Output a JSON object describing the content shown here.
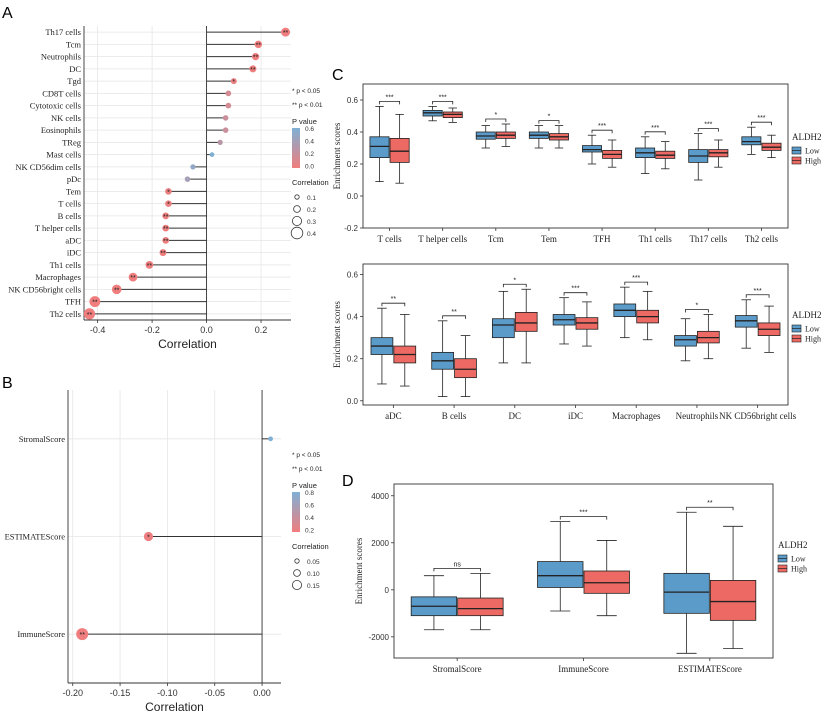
{
  "chart_data": [
    {
      "panel": "A",
      "type": "lollipop",
      "xlabel": "Correlation",
      "xlim": [
        -0.45,
        0.31
      ],
      "xticks": [
        -0.4,
        -0.2,
        0.0,
        0.2
      ],
      "tick_labels": [
        "-0.4",
        "-0.2",
        "0.0",
        "0.2"
      ],
      "categories": [
        "Th17 cells",
        "Tcm",
        "Neutrophils",
        "DC",
        "Tgd",
        "CD8T cells",
        "Cytotoxic cells",
        "NK cells",
        "Eosinophils",
        "TReg",
        "Mast cells",
        "NK CD56dim cells",
        "pDc",
        "Tem",
        "T cells",
        "B cells",
        "T helper cells",
        "aDC",
        "iDC",
        "Th1 cells",
        "Macrophages",
        "NK CD56bright cells",
        "TFH",
        "Th2 cells"
      ],
      "values": [
        0.29,
        0.19,
        0.18,
        0.17,
        0.1,
        0.08,
        0.08,
        0.07,
        0.07,
        0.05,
        0.02,
        -0.05,
        -0.07,
        -0.14,
        -0.14,
        -0.15,
        -0.15,
        -0.15,
        -0.16,
        -0.21,
        -0.27,
        -0.33,
        -0.41,
        -0.43
      ],
      "pvalues": [
        0.0,
        0.0,
        0.0,
        0.0,
        0.02,
        0.15,
        0.15,
        0.2,
        0.2,
        0.3,
        0.6,
        0.5,
        0.4,
        0.02,
        0.02,
        0.01,
        0.01,
        0.01,
        0.005,
        0.002,
        0.0,
        0.0,
        0.0,
        0.0
      ],
      "sig": [
        "**",
        "**",
        "**",
        "**",
        "*",
        "",
        "",
        "",
        "",
        "",
        "",
        "",
        "",
        "*",
        "*",
        "**",
        "**",
        "**",
        "**",
        "**",
        "**",
        "**",
        "**",
        "**"
      ],
      "legend": {
        "sig_notes": [
          "* p < 0.05",
          "** p < 0.01"
        ],
        "p_title": "P value",
        "p_ticks": [
          "0.6",
          "0.4",
          "0.2",
          "0.0"
        ],
        "size_title": "Correlation",
        "size_ticks": [
          "0.1",
          "0.2",
          "0.3",
          "0.4"
        ]
      }
    },
    {
      "panel": "B",
      "type": "lollipop",
      "xlabel": "Correlation",
      "xlim": [
        -0.205,
        0.02
      ],
      "xticks": [
        -0.2,
        -0.15,
        -0.1,
        -0.05,
        0.0
      ],
      "tick_labels": [
        "-0.20",
        "-0.15",
        "-0.10",
        "-0.05",
        "0.00"
      ],
      "categories": [
        "StromalScore",
        "ESTIMATEScore",
        "ImmuneScore"
      ],
      "values": [
        0.009,
        -0.12,
        -0.19
      ],
      "pvalues": [
        0.8,
        0.02,
        0.001
      ],
      "sig": [
        "",
        "*",
        "**"
      ],
      "legend": {
        "sig_notes": [
          "* p < 0.05",
          "** p < 0.01"
        ],
        "p_title": "P value",
        "p_ticks": [
          "0.8",
          "0.6",
          "0.4",
          "0.2"
        ],
        "size_title": "Correlation",
        "size_ticks": [
          "0.05",
          "0.10",
          "0.15"
        ]
      }
    },
    {
      "panel": "C",
      "type": "boxplot",
      "ylabel": "Enrichment scores",
      "ylim": [
        -0.2,
        0.7
      ],
      "yticks": [
        -0.2,
        0.0,
        0.2,
        0.4,
        0.6
      ],
      "tick_labels": [
        "-0.2",
        "0.0",
        "0.2",
        "0.4",
        "0.6"
      ],
      "categories": [
        "T cells",
        "T helper cells",
        "Tcm",
        "Tem",
        "TFH",
        "Th1 cells",
        "Th17 cells",
        "Th2 cells"
      ],
      "sig": [
        "***",
        "***",
        "*",
        "*",
        "***",
        "***",
        "***",
        "***"
      ],
      "legend": {
        "title": "ALDH2",
        "labels": [
          "Low",
          "High"
        ]
      },
      "series": [
        {
          "name": "Low",
          "values": [
            {
              "min": 0.09,
              "q1": 0.24,
              "med": 0.31,
              "q3": 0.37,
              "max": 0.56
            },
            {
              "min": 0.47,
              "q1": 0.5,
              "med": 0.52,
              "q3": 0.535,
              "max": 0.56
            },
            {
              "min": 0.3,
              "q1": 0.355,
              "med": 0.375,
              "q3": 0.4,
              "max": 0.44
            },
            {
              "min": 0.3,
              "q1": 0.36,
              "med": 0.38,
              "q3": 0.4,
              "max": 0.44
            },
            {
              "min": 0.2,
              "q1": 0.275,
              "med": 0.29,
              "q3": 0.315,
              "max": 0.38
            },
            {
              "min": 0.14,
              "q1": 0.24,
              "med": 0.27,
              "q3": 0.3,
              "max": 0.37
            },
            {
              "min": 0.1,
              "q1": 0.21,
              "med": 0.25,
              "q3": 0.29,
              "max": 0.39
            },
            {
              "min": 0.26,
              "q1": 0.32,
              "med": 0.34,
              "q3": 0.37,
              "max": 0.43
            }
          ]
        },
        {
          "name": "High",
          "values": [
            {
              "min": 0.08,
              "q1": 0.21,
              "med": 0.28,
              "q3": 0.36,
              "max": 0.51
            },
            {
              "min": 0.46,
              "q1": 0.49,
              "med": 0.51,
              "q3": 0.525,
              "max": 0.55
            },
            {
              "min": 0.31,
              "q1": 0.36,
              "med": 0.38,
              "q3": 0.4,
              "max": 0.45
            },
            {
              "min": 0.3,
              "q1": 0.35,
              "med": 0.37,
              "q3": 0.39,
              "max": 0.44
            },
            {
              "min": 0.18,
              "q1": 0.235,
              "med": 0.26,
              "q3": 0.285,
              "max": 0.35
            },
            {
              "min": 0.17,
              "q1": 0.235,
              "med": 0.255,
              "q3": 0.28,
              "max": 0.34
            },
            {
              "min": 0.18,
              "q1": 0.245,
              "med": 0.27,
              "q3": 0.29,
              "max": 0.35
            },
            {
              "min": 0.24,
              "q1": 0.285,
              "med": 0.305,
              "q3": 0.33,
              "max": 0.38
            }
          ]
        }
      ]
    },
    {
      "panel": "C2",
      "type": "boxplot",
      "ylabel": "Enrichment scores",
      "ylim": [
        -0.02,
        0.65
      ],
      "yticks": [
        0.0,
        0.2,
        0.4,
        0.6
      ],
      "tick_labels": [
        "0.0",
        "0.2",
        "0.4",
        "0.6"
      ],
      "categories": [
        "aDC",
        "B cells",
        "DC",
        "iDC",
        "Macrophages",
        "Neutrophils",
        "NK CD56bright cells"
      ],
      "sig": [
        "**",
        "**",
        "*",
        "***",
        "***",
        "*",
        "***"
      ],
      "legend": {
        "title": "ALDH2",
        "labels": [
          "Low",
          "High"
        ]
      },
      "series": [
        {
          "name": "Low",
          "values": [
            {
              "min": 0.08,
              "q1": 0.22,
              "med": 0.26,
              "q3": 0.3,
              "max": 0.44
            },
            {
              "min": 0.02,
              "q1": 0.15,
              "med": 0.19,
              "q3": 0.23,
              "max": 0.38
            },
            {
              "min": 0.18,
              "q1": 0.3,
              "med": 0.36,
              "q3": 0.39,
              "max": 0.52
            },
            {
              "min": 0.27,
              "q1": 0.36,
              "med": 0.385,
              "q3": 0.41,
              "max": 0.49
            },
            {
              "min": 0.3,
              "q1": 0.4,
              "med": 0.43,
              "q3": 0.46,
              "max": 0.54
            },
            {
              "min": 0.19,
              "q1": 0.26,
              "med": 0.29,
              "q3": 0.31,
              "max": 0.39
            },
            {
              "min": 0.25,
              "q1": 0.35,
              "med": 0.38,
              "q3": 0.405,
              "max": 0.48
            }
          ]
        },
        {
          "name": "High",
          "values": [
            {
              "min": 0.07,
              "q1": 0.18,
              "med": 0.22,
              "q3": 0.26,
              "max": 0.41
            },
            {
              "min": 0.02,
              "q1": 0.11,
              "med": 0.15,
              "q3": 0.2,
              "max": 0.31
            },
            {
              "min": 0.18,
              "q1": 0.33,
              "med": 0.37,
              "q3": 0.42,
              "max": 0.53
            },
            {
              "min": 0.26,
              "q1": 0.34,
              "med": 0.37,
              "q3": 0.395,
              "max": 0.47
            },
            {
              "min": 0.29,
              "q1": 0.37,
              "med": 0.4,
              "q3": 0.43,
              "max": 0.52
            },
            {
              "min": 0.2,
              "q1": 0.275,
              "med": 0.3,
              "q3": 0.33,
              "max": 0.41
            },
            {
              "min": 0.23,
              "q1": 0.31,
              "med": 0.34,
              "q3": 0.37,
              "max": 0.45
            }
          ]
        }
      ]
    },
    {
      "panel": "D",
      "type": "boxplot",
      "ylabel": "Enrichment scores",
      "ylim": [
        -2900,
        4500
      ],
      "yticks": [
        -2000,
        0,
        2000,
        4000
      ],
      "tick_labels": [
        "-2000",
        "0",
        "2000",
        "4000"
      ],
      "categories": [
        "StromalScore",
        "ImmuneScore",
        "ESTIMATEScore"
      ],
      "sig": [
        "ns",
        "***",
        "**"
      ],
      "legend": {
        "title": "ALDH2",
        "labels": [
          "Low",
          "High"
        ]
      },
      "series": [
        {
          "name": "Low",
          "values": [
            {
              "min": -1700,
              "q1": -1100,
              "med": -700,
              "q3": -300,
              "max": 600
            },
            {
              "min": -900,
              "q1": 100,
              "med": 600,
              "q3": 1200,
              "max": 2900
            },
            {
              "min": -2700,
              "q1": -1000,
              "med": -100,
              "q3": 700,
              "max": 3300
            }
          ]
        },
        {
          "name": "High",
          "values": [
            {
              "min": -1700,
              "q1": -1100,
              "med": -800,
              "q3": -350,
              "max": 700
            },
            {
              "min": -1100,
              "q1": -150,
              "med": 300,
              "q3": 800,
              "max": 2100
            },
            {
              "min": -2500,
              "q1": -1300,
              "med": -500,
              "q3": 400,
              "max": 2700
            }
          ]
        }
      ]
    }
  ],
  "colors": {
    "low": "#5b9bc9",
    "high": "#ec6a63",
    "p_high": "#7fb0d4",
    "p_low": "#f07e7e",
    "grid": "#e6e6e6"
  },
  "panel_labels": {
    "a": "A",
    "b": "B",
    "c": "C",
    "d": "D"
  }
}
